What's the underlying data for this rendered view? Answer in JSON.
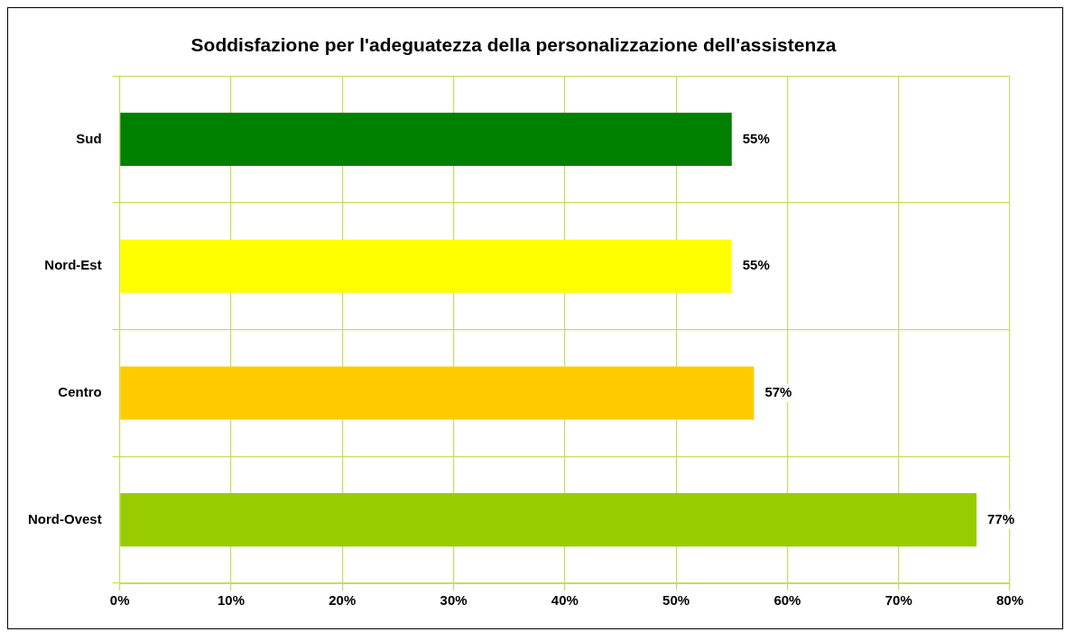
{
  "chart_data": {
    "type": "bar",
    "orientation": "horizontal",
    "title": "Soddisfazione per l'adeguatezza della personalizzazione dell'assistenza",
    "categories": [
      "Sud",
      "Nord-Est",
      "Centro",
      "Nord-Ovest"
    ],
    "values": [
      55,
      55,
      57,
      77
    ],
    "colors": [
      "#008000",
      "#ffff00",
      "#ffcc00",
      "#99cc00"
    ],
    "value_labels": [
      "55%",
      "55%",
      "57%",
      "77%"
    ],
    "xlim": [
      0,
      80
    ],
    "xticks": [
      {
        "value": 0,
        "label": "0%"
      },
      {
        "value": 10,
        "label": "10%"
      },
      {
        "value": 20,
        "label": "20%"
      },
      {
        "value": 30,
        "label": "30%"
      },
      {
        "value": 40,
        "label": "40%"
      },
      {
        "value": 50,
        "label": "50%"
      },
      {
        "value": 60,
        "label": "60%"
      },
      {
        "value": 70,
        "label": "70%"
      },
      {
        "value": 80,
        "label": "80%"
      }
    ],
    "grid": true,
    "legend": false
  }
}
